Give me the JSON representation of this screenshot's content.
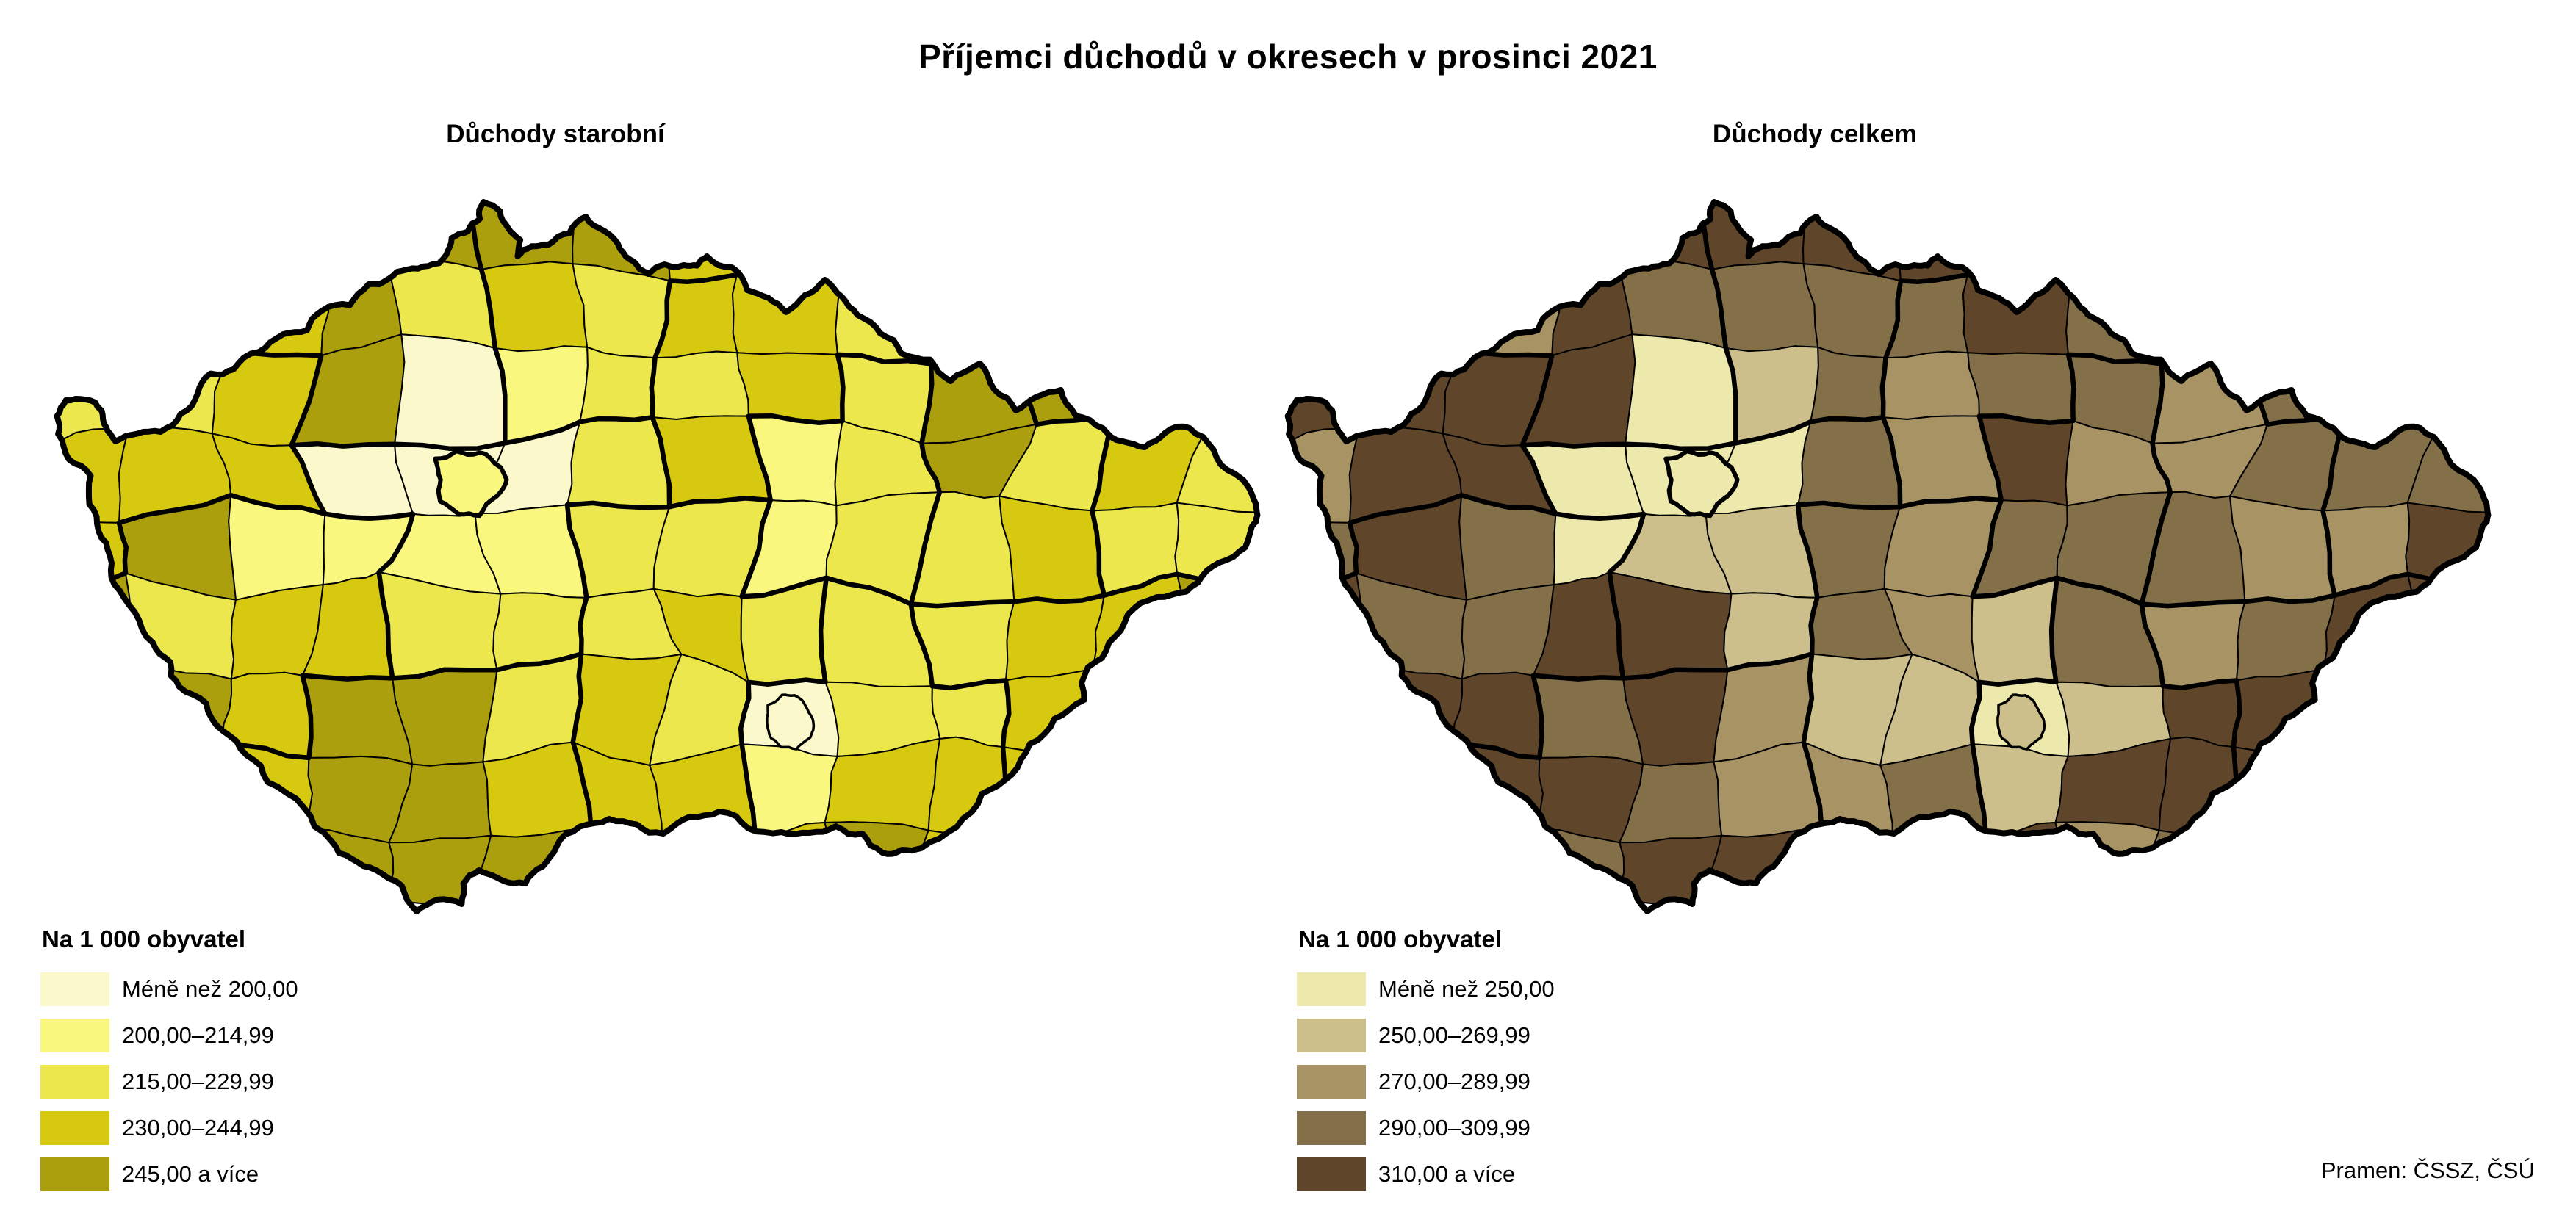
{
  "title": "Příjemci důchodů v okresech v prosinci 2021",
  "source": "Pramen: ČSSZ, ČSÚ",
  "border_color": "#000000",
  "background_color": "#ffffff",
  "maps": [
    {
      "id": "duchody-starobni",
      "subtitle": "Důchody starobní",
      "legend_title": "Na 1 000 obyvatel",
      "classes": [
        {
          "label": "Méně než 200,00",
          "color": "#FBF8CC"
        },
        {
          "label": "200,00–214,99",
          "color": "#FAF77F"
        },
        {
          "label": "215,00–229,99",
          "color": "#EDE74E"
        },
        {
          "label": "230,00–244,99",
          "color": "#D6C90F"
        },
        {
          "label": "245,00 a více",
          "color": "#AC9F0D"
        }
      ]
    },
    {
      "id": "duchody-celkem",
      "subtitle": "Důchody celkem",
      "legend_title": "Na 1 000 obyvatel",
      "classes": [
        {
          "label": "Méně než 250,00",
          "color": "#EDE8AB"
        },
        {
          "label": "250,00–269,99",
          "color": "#CDBF8B"
        },
        {
          "label": "270,00–289,99",
          "color": "#A79364"
        },
        {
          "label": "290,00–309,99",
          "color": "#837049"
        },
        {
          "label": "310,00 a více",
          "color": "#5F462B"
        }
      ]
    }
  ],
  "chart_data": {
    "type": "choropleth-map-pair",
    "title": "Příjemci důchodů v okresech v prosinci 2021",
    "unit": "Na 1 000 obyvatel",
    "maps": [
      {
        "subtitle": "Důchody starobní",
        "class_breaks": [
          "Méně než 200,00",
          "200,00–214,99",
          "215,00–229,99",
          "230,00–244,99",
          "245,00 a více"
        ],
        "colors": [
          "#FBF8CC",
          "#FAF77F",
          "#EDE74E",
          "#D6C90F",
          "#AC9F0D"
        ]
      },
      {
        "subtitle": "Důchody celkem",
        "class_breaks": [
          "Méně než 250,00",
          "250,00–269,99",
          "270,00–289,99",
          "290,00–309,99",
          "310,00 a více"
        ],
        "colors": [
          "#EDE8AB",
          "#CDBF8B",
          "#A79364",
          "#837049",
          "#5F462B"
        ]
      }
    ],
    "geography": "okresy České republiky (districts of the Czech Republic), thick borders = kraje",
    "source": "Pramen: ČSSZ, ČSÚ"
  }
}
